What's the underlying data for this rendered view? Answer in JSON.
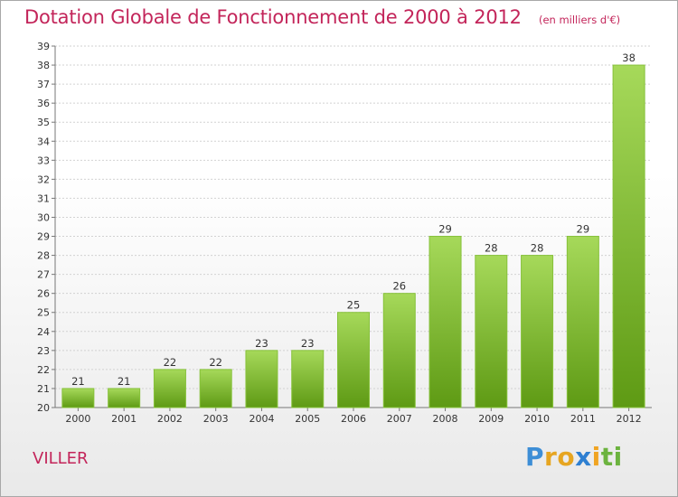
{
  "header": {
    "title": "Dotation Globale de Fonctionnement de 2000 à 2012",
    "subtitle": "(en milliers d'€)"
  },
  "footer": {
    "commune": "VILLER",
    "logo": "Proxiti"
  },
  "colors": {
    "title": "#c3255a",
    "bar_top": "#a6d95a",
    "bar_bottom": "#5e9a14",
    "grid": "#cfcfcf"
  },
  "chart_data": {
    "type": "bar",
    "title": "Dotation Globale de Fonctionnement de 2000 à 2012",
    "subtitle": "(en milliers d'€)",
    "categories": [
      "2000",
      "2001",
      "2002",
      "2003",
      "2004",
      "2005",
      "2006",
      "2007",
      "2008",
      "2009",
      "2010",
      "2011",
      "2012"
    ],
    "values": [
      21,
      21,
      22,
      22,
      23,
      23,
      25,
      26,
      29,
      28,
      28,
      29,
      38
    ],
    "ylim": [
      20,
      39
    ],
    "ytick_step": 1,
    "grid": true,
    "legend": "none"
  }
}
